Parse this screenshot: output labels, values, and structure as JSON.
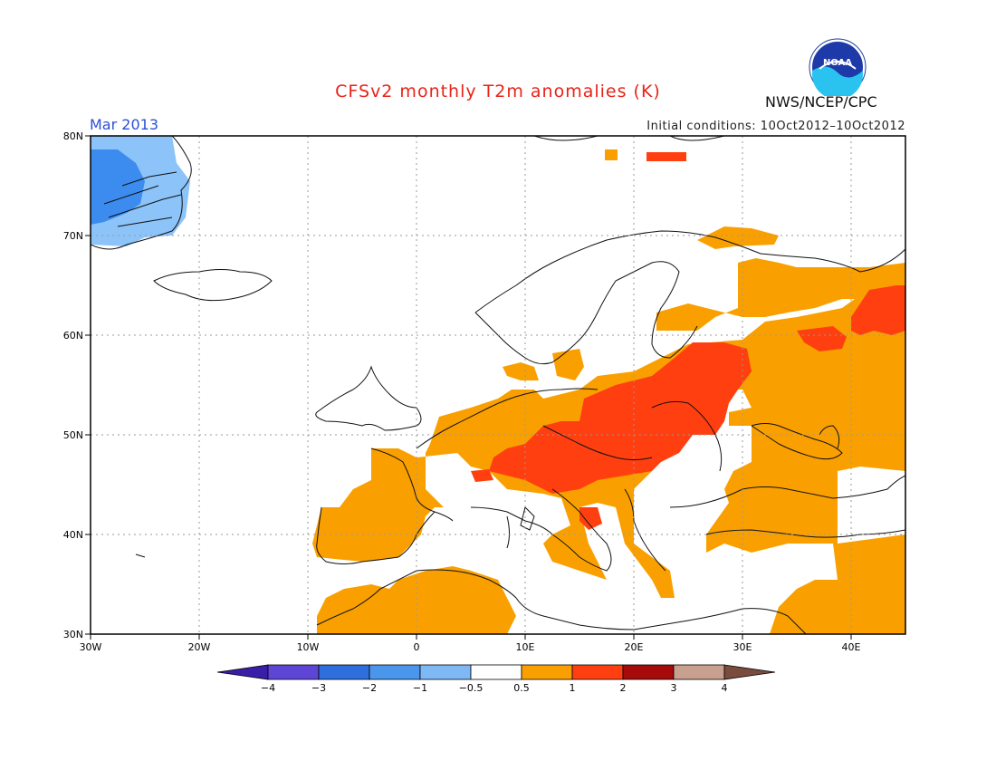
{
  "title": "CFSv2 monthly T2m anomalies (K)",
  "month": "Mar 2013",
  "initial_conditions": "Initial conditions: 10Oct2012–10Oct2012",
  "agency": "NWS/NCEP/CPC",
  "logo_text": "NOAA",
  "map": {
    "lat_labels": [
      "80N",
      "70N",
      "60N",
      "50N",
      "40N",
      "30N"
    ],
    "lon_labels": [
      "30W",
      "20W",
      "10W",
      "0",
      "10E",
      "20E",
      "30E",
      "40E"
    ]
  },
  "colorbar": {
    "labels": [
      "−4",
      "−3",
      "−2",
      "−1",
      "−0.5",
      "0.5",
      "1",
      "2",
      "3",
      "4"
    ],
    "colors": [
      "#3a1ea8",
      "#5d46d6",
      "#2f6fdd",
      "#4a96ec",
      "#7eb9f5",
      "#ffffff",
      "#f9a000",
      "#ff3f0f",
      "#a60a0a",
      "#c9a090",
      "#7a4c3e"
    ]
  },
  "anomaly_colors": {
    "cold_strong": "#3c8cf0",
    "cold_weak": "#8cc3f8",
    "warm_weak": "#f9a000",
    "warm_strong": "#ff3f0f"
  }
}
